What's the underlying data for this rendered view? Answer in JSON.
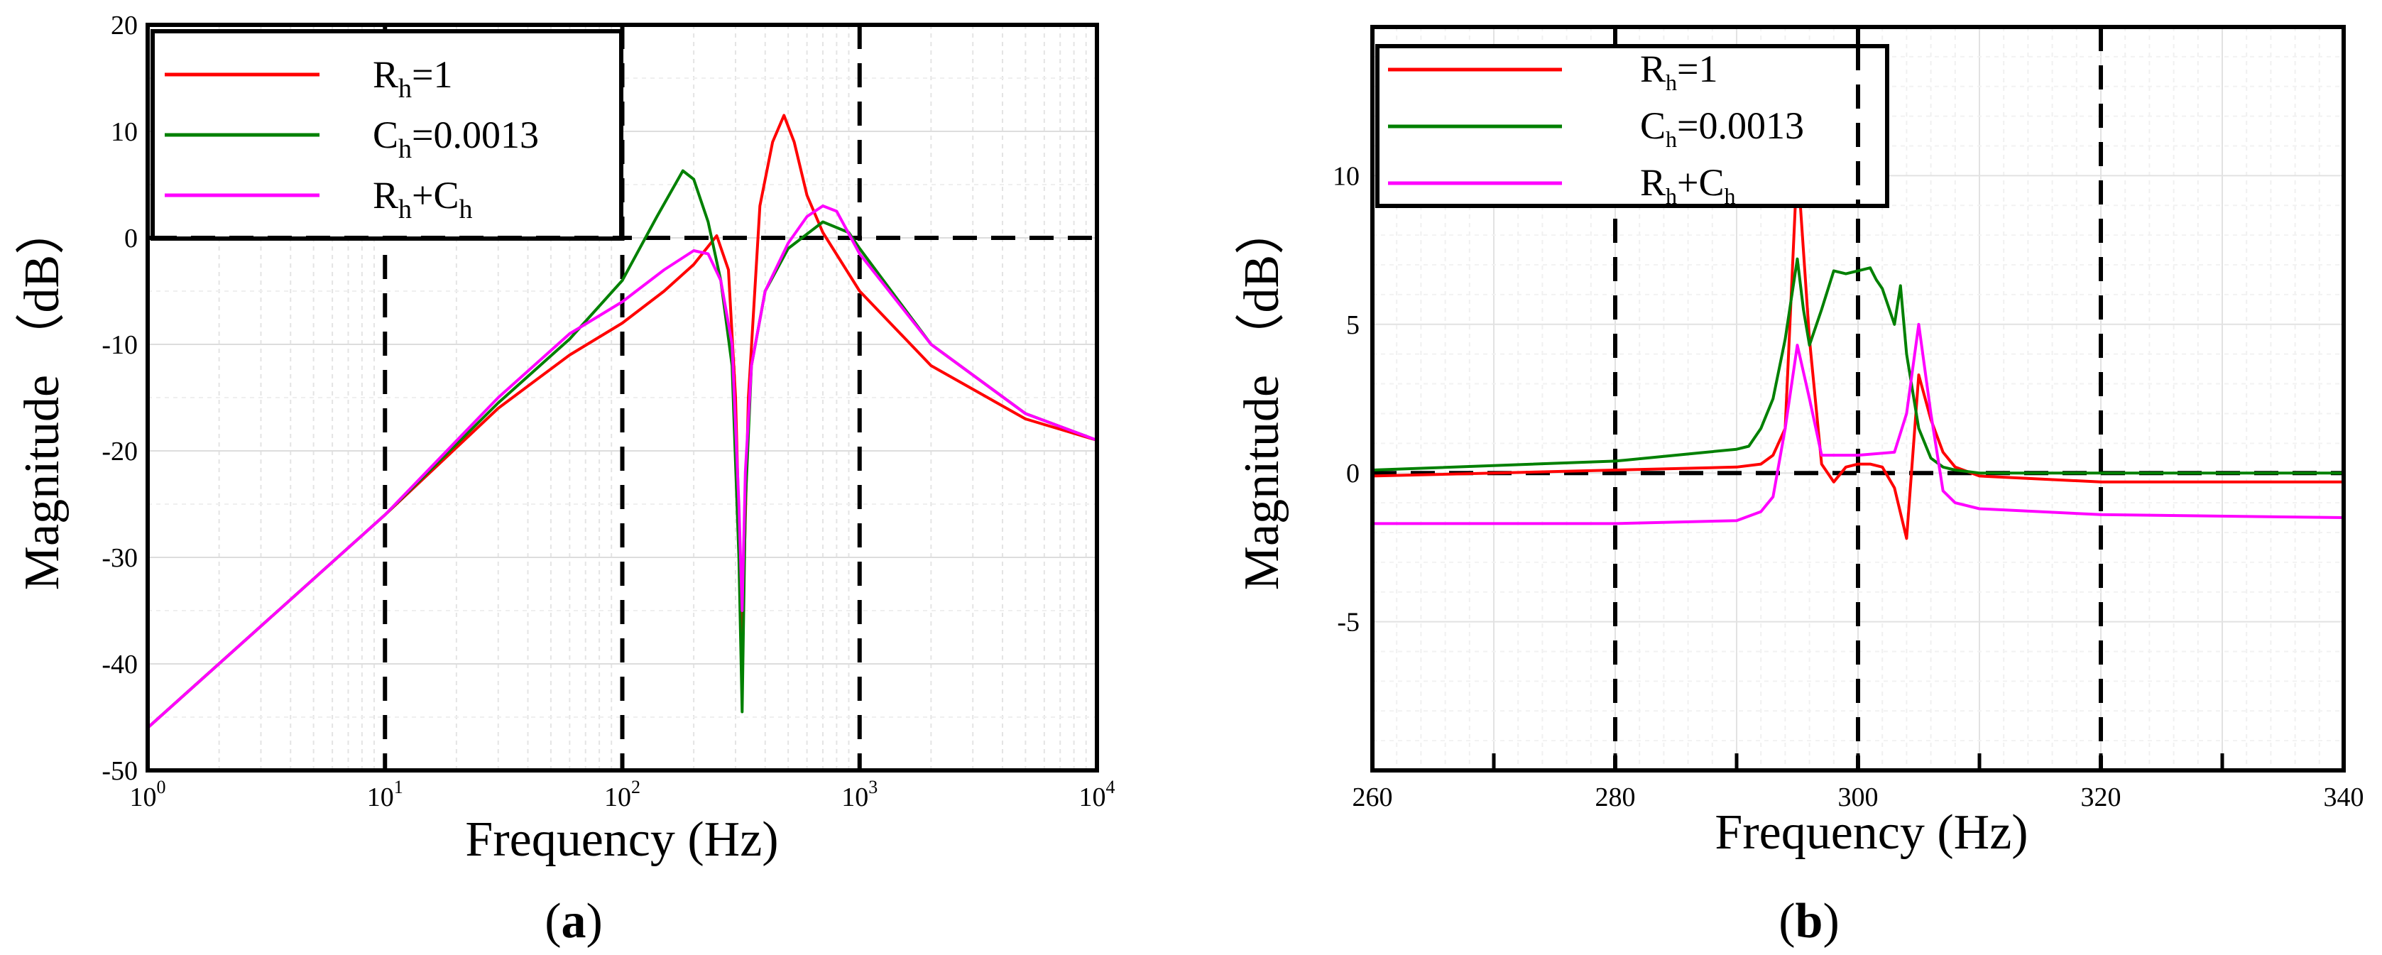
{
  "chart_data": [
    {
      "type": "line",
      "panel": "a",
      "caption_open": "(",
      "caption_letter": "a",
      "caption_close": ")",
      "xlabel": "Frequency (Hz)",
      "ylabel": "Magnitude （dB）",
      "xscale": "log",
      "xlim": [
        1,
        10000
      ],
      "ylim": [
        -50,
        20
      ],
      "xticks": [
        {
          "base": "10",
          "exp": "0",
          "value": 1
        },
        {
          "base": "10",
          "exp": "1",
          "value": 10
        },
        {
          "base": "10",
          "exp": "2",
          "value": 100
        },
        {
          "base": "10",
          "exp": "3",
          "value": 1000
        },
        {
          "base": "10",
          "exp": "4",
          "value": 10000
        }
      ],
      "yticks": [
        "20",
        "10",
        "0",
        "-10",
        "-20",
        "-30",
        "-40",
        "-50"
      ],
      "reference_lines": {
        "horizontal": [
          0
        ],
        "vertical": [
          10,
          100,
          1000
        ]
      },
      "legend_placement": "top-left",
      "series": [
        {
          "name": "Rh=1",
          "label_main": "R",
          "label_sub": "h",
          "label_rest": "=1",
          "color": "#ff0000",
          "x": [
            1,
            10,
            30,
            60,
            100,
            150,
            200,
            250,
            280,
            300,
            320,
            340,
            380,
            430,
            480,
            530,
            600,
            700,
            1000,
            2000,
            5000,
            10000
          ],
          "y": [
            -46,
            -26,
            -16,
            -11,
            -8,
            -5,
            -2.5,
            0.2,
            -3,
            -15,
            -38,
            -15,
            3,
            9,
            11.5,
            9,
            4,
            0.5,
            -5,
            -12,
            -17,
            -19
          ]
        },
        {
          "name": "Ch=0.0013",
          "label_main": "C",
          "label_sub": "h",
          "label_rest": "=0.0013",
          "color": "#008000",
          "x": [
            1,
            10,
            30,
            60,
            100,
            140,
            180,
            200,
            230,
            260,
            290,
            310,
            320,
            330,
            350,
            400,
            500,
            700,
            900,
            1000,
            2000,
            5000,
            10000
          ],
          "y": [
            -46,
            -26,
            -15.5,
            -9.5,
            -4,
            2,
            6.3,
            5.5,
            1.5,
            -4,
            -12,
            -30,
            -44.5,
            -25,
            -12,
            -5,
            -1,
            1.5,
            0.5,
            -1,
            -10,
            -16.5,
            -19
          ]
        },
        {
          "name": "Rh+Ch",
          "label_main": "R",
          "label_sub": "h",
          "label_rest": "+C",
          "label_sub2": "h",
          "color": "#ff00ff",
          "x": [
            1,
            10,
            30,
            60,
            100,
            150,
            200,
            230,
            260,
            290,
            310,
            320,
            330,
            350,
            400,
            500,
            600,
            700,
            800,
            1000,
            2000,
            5000,
            10000
          ],
          "y": [
            -46,
            -26,
            -15,
            -9,
            -6,
            -3,
            -1.2,
            -1.5,
            -4,
            -10,
            -25,
            -35,
            -22,
            -12,
            -5,
            -0.5,
            2,
            3,
            2.5,
            -1.5,
            -10,
            -16.5,
            -19
          ]
        }
      ]
    },
    {
      "type": "line",
      "panel": "b",
      "caption_open": "(",
      "caption_letter": "b",
      "caption_close": ")",
      "xlabel": "Frequency (Hz)",
      "ylabel": "Magnitude （dB）",
      "xscale": "linear",
      "xlim": [
        260,
        340
      ],
      "ylim": [
        -10,
        15
      ],
      "xticks": [
        "260",
        "280",
        "300",
        "320",
        "340"
      ],
      "yticks": [
        "10",
        "5",
        "0",
        "-5"
      ],
      "reference_lines": {
        "horizontal": [
          0
        ],
        "vertical": [
          280,
          300,
          320
        ]
      },
      "legend_placement": "top-left",
      "series": [
        {
          "name": "Rh=1",
          "label_main": "R",
          "label_sub": "h",
          "label_rest": "=1",
          "color": "#ff0000",
          "x": [
            260,
            280,
            290,
            292,
            293,
            294,
            295,
            296,
            297,
            298,
            299,
            300,
            301,
            302,
            303,
            304,
            305,
            306,
            307,
            308,
            310,
            320,
            340
          ],
          "y": [
            -0.1,
            0.1,
            0.2,
            0.3,
            0.6,
            1.5,
            10.5,
            4.5,
            0.3,
            -0.3,
            0.2,
            0.3,
            0.3,
            0.2,
            -0.5,
            -2.2,
            3.3,
            1.8,
            0.7,
            0.2,
            -0.1,
            -0.3,
            -0.3
          ]
        },
        {
          "name": "Ch=0.0013",
          "label_main": "C",
          "label_sub": "h",
          "label_rest": "=0.0013",
          "color": "#008000",
          "x": [
            260,
            280,
            290,
            291,
            292,
            293,
            294,
            295,
            295.5,
            296,
            297,
            298,
            299,
            300,
            301,
            301.5,
            302,
            303,
            303.5,
            304,
            305,
            306,
            307,
            308,
            310,
            320,
            340
          ],
          "y": [
            0.1,
            0.4,
            0.8,
            0.9,
            1.5,
            2.5,
            4.5,
            7.2,
            5.5,
            4.3,
            5.5,
            6.8,
            6.7,
            6.8,
            6.9,
            6.5,
            6.2,
            5.0,
            6.3,
            4.0,
            1.5,
            0.5,
            0.2,
            0.1,
            0.0,
            0.0,
            0.0
          ]
        },
        {
          "name": "Rh+Ch",
          "label_main": "R",
          "label_sub": "h",
          "label_rest": "+C",
          "label_sub2": "h",
          "color": "#ff00ff",
          "x": [
            260,
            280,
            290,
            292,
            293,
            294,
            295,
            296,
            297,
            298,
            300,
            303,
            304,
            305,
            306,
            307,
            308,
            310,
            320,
            340
          ],
          "y": [
            -1.7,
            -1.7,
            -1.6,
            -1.3,
            -0.8,
            1.5,
            4.3,
            2.5,
            0.6,
            0.6,
            0.6,
            0.7,
            2.0,
            5.0,
            2.0,
            -0.6,
            -1.0,
            -1.2,
            -1.4,
            -1.5
          ]
        }
      ]
    }
  ]
}
